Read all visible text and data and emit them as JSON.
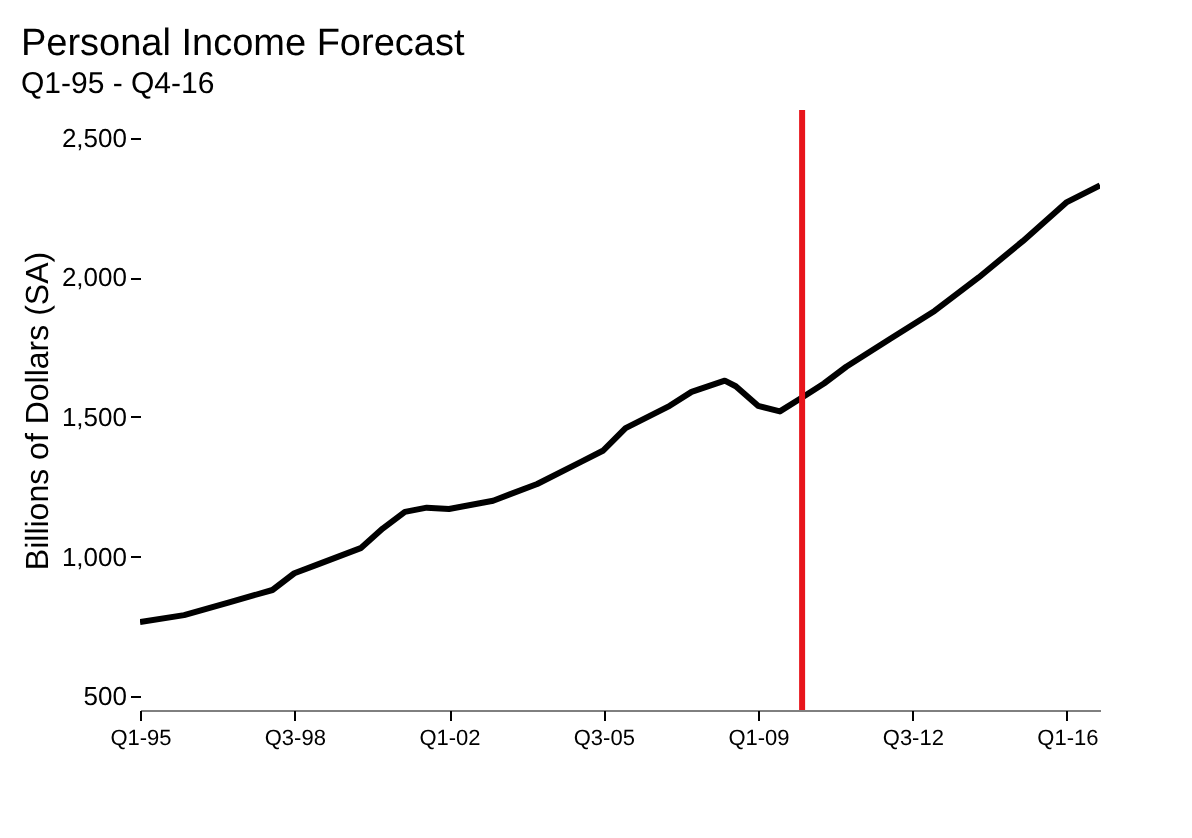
{
  "chart_data": {
    "type": "line",
    "title": "Personal Income Forecast",
    "subtitle": "Q1-95 - Q4-16",
    "ylabel": "Billions of Dollars (SA)",
    "x": [
      "1995-01",
      "1996-01",
      "1997-01",
      "1998-01",
      "1998-07",
      "1999-01",
      "2000-01",
      "2000-07",
      "2001-01",
      "2001-07",
      "2002-01",
      "2003-01",
      "2004-01",
      "2005-01",
      "2005-07",
      "2006-01",
      "2007-01",
      "2007-07",
      "2008-04",
      "2008-07",
      "2009-01",
      "2009-07",
      "2010-01",
      "2010-07",
      "2011-01",
      "2012-01",
      "2013-01",
      "2014-01",
      "2015-01",
      "2016-01",
      "2016-10"
    ],
    "series": [
      {
        "color": "#000000",
        "values": [
          765,
          790,
          835,
          880,
          940,
          970,
          1030,
          1100,
          1160,
          1175,
          1170,
          1200,
          1260,
          1340,
          1380,
          1460,
          1540,
          1590,
          1630,
          1610,
          1540,
          1520,
          1570,
          1620,
          1680,
          1780,
          1880,
          2000,
          2130,
          2270,
          2330
        ]
      }
    ],
    "xticks": [
      {
        "value": "1995-01",
        "label": "Q1-95"
      },
      {
        "value": "1998-07",
        "label": "Q3-98"
      },
      {
        "value": "2002-01",
        "label": "Q1-02"
      },
      {
        "value": "2005-07",
        "label": "Q3-05"
      },
      {
        "value": "2009-01",
        "label": "Q1-09"
      },
      {
        "value": "2012-07",
        "label": "Q3-12"
      },
      {
        "value": "2016-01",
        "label": "Q1-16"
      }
    ],
    "xlim": [
      "1995-01",
      "2016-10"
    ],
    "ylim": [
      450,
      2600
    ],
    "yticks": [
      {
        "value": 500,
        "label": "500"
      },
      {
        "value": 1000,
        "label": "1,000"
      },
      {
        "value": 1500,
        "label": "1,500"
      },
      {
        "value": 2000,
        "label": "2,000"
      },
      {
        "value": 2500,
        "label": "2,500"
      }
    ],
    "ref_lines": [
      {
        "axis": "x",
        "value": "2010-01",
        "color": "#e8141b",
        "line_style": "solid"
      }
    ],
    "grid": false,
    "legend": false,
    "marker": "none",
    "line_style": "solid"
  }
}
